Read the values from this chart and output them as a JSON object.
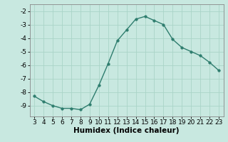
{
  "x": [
    3,
    4,
    5,
    6,
    7,
    8,
    9,
    10,
    11,
    12,
    13,
    14,
    15,
    16,
    17,
    18,
    19,
    20,
    21,
    22,
    23
  ],
  "y": [
    -8.3,
    -8.7,
    -9.0,
    -9.2,
    -9.2,
    -9.3,
    -8.9,
    -7.5,
    -5.9,
    -4.2,
    -3.4,
    -2.6,
    -2.4,
    -2.7,
    -3.0,
    -4.1,
    -4.7,
    -5.0,
    -5.3,
    -5.8,
    -6.4
  ],
  "line_color": "#2e7d6e",
  "marker_color": "#2e7d6e",
  "bg_color": "#c8e8e0",
  "grid_color": "#aad4c8",
  "xlabel": "Humidex (Indice chaleur)",
  "xlabel_fontsize": 7.5,
  "xlim": [
    2.5,
    23.5
  ],
  "ylim": [
    -9.8,
    -1.5
  ],
  "yticks": [
    -2,
    -3,
    -4,
    -5,
    -6,
    -7,
    -8,
    -9
  ],
  "xticks": [
    3,
    4,
    5,
    6,
    7,
    8,
    9,
    10,
    11,
    12,
    13,
    14,
    15,
    16,
    17,
    18,
    19,
    20,
    21,
    22,
    23
  ],
  "tick_fontsize": 6.5,
  "line_width": 1.0,
  "marker_size": 2.5
}
